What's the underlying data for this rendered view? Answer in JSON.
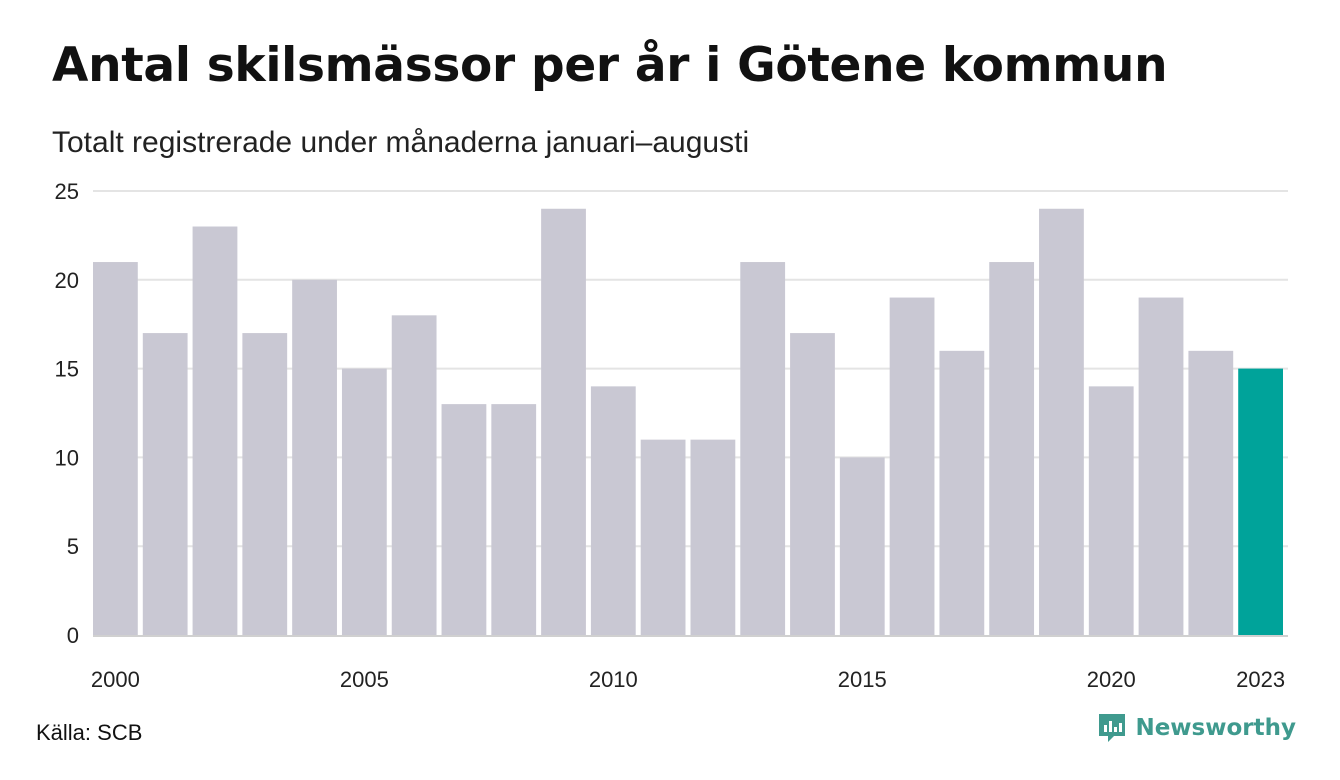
{
  "title": "Antal skilsmässor per år i Götene kommun",
  "subtitle": "Totalt registrerade under månaderna januari–augusti",
  "source": "Källa: SCB",
  "brand": {
    "name": "Newsworthy",
    "icon": "newsworthy-logo-icon",
    "color": "#3f9a8e"
  },
  "chart_data": {
    "type": "bar",
    "categories": [
      2000,
      2001,
      2002,
      2003,
      2004,
      2005,
      2006,
      2007,
      2008,
      2009,
      2010,
      2011,
      2012,
      2013,
      2014,
      2015,
      2016,
      2017,
      2018,
      2019,
      2020,
      2021,
      2022,
      2023
    ],
    "values": [
      21,
      17,
      23,
      17,
      20,
      15,
      18,
      13,
      13,
      24,
      14,
      11,
      11,
      21,
      17,
      10,
      19,
      16,
      21,
      24,
      14,
      19,
      16,
      15
    ],
    "ylim": [
      0,
      25
    ],
    "yticks": [
      0,
      5,
      10,
      15,
      20,
      25
    ],
    "xtick_labels": [
      "2000",
      "2005",
      "2010",
      "2015",
      "2020",
      "2023"
    ],
    "grid": true,
    "colors": {
      "bar": "#c9c8d3",
      "highlight": "#00a39a",
      "grid": "#e4e4e4",
      "axis": "#d0d0d0"
    },
    "highlight_category": 2023
  }
}
